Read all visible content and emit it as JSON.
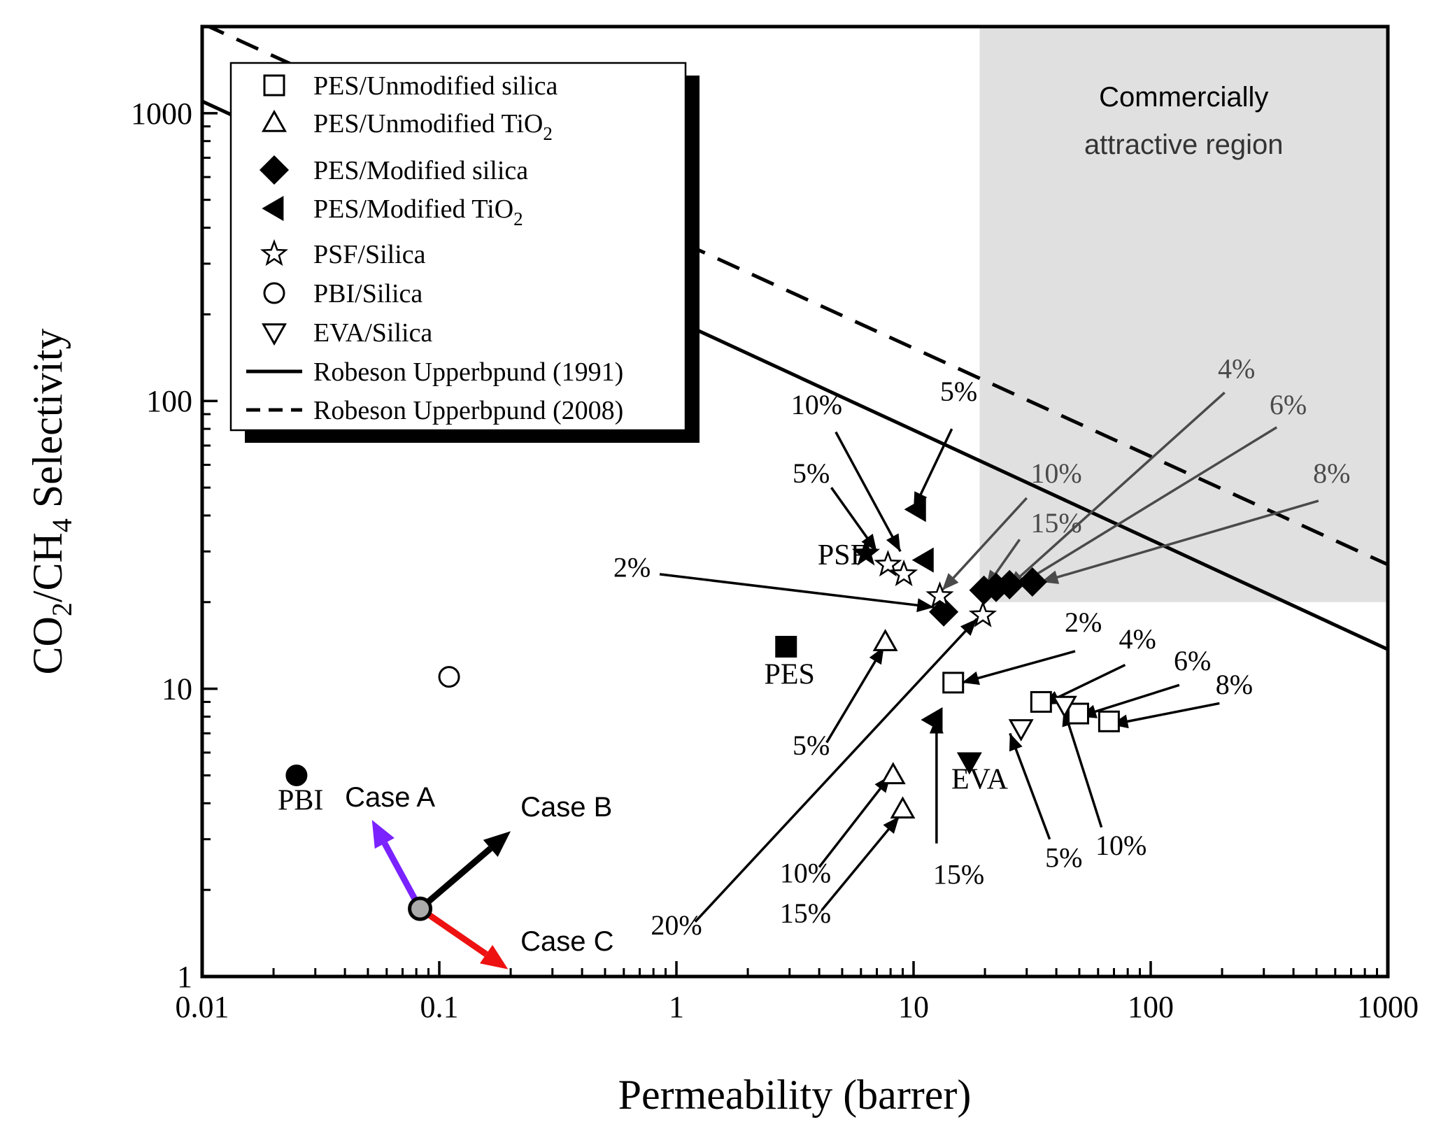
{
  "chart_data": {
    "type": "scatter",
    "xscale": "log",
    "yscale": "log",
    "xlim": [
      0.01,
      1000
    ],
    "ylim": [
      1,
      2000
    ],
    "xlabel": "Permeability (barrer)",
    "ylabel_parts": [
      "CO",
      "2",
      "/CH",
      "4",
      " Selectivity"
    ],
    "x_ticks": [
      {
        "value": 0.01,
        "label": "0.01"
      },
      {
        "value": 0.1,
        "label": "0.1"
      },
      {
        "value": 1,
        "label": "1"
      },
      {
        "value": 10,
        "label": "10"
      },
      {
        "value": 100,
        "label": "100"
      },
      {
        "value": 1000,
        "label": "1000"
      }
    ],
    "y_ticks": [
      {
        "value": 1,
        "label": "1"
      },
      {
        "value": 10,
        "label": "10"
      },
      {
        "value": 100,
        "label": "100"
      },
      {
        "value": 1000,
        "label": "1000"
      }
    ],
    "region": {
      "name": "commercial-region",
      "x_range": [
        19,
        1000
      ],
      "y_range": [
        20,
        2000
      ],
      "color": "#e0e0e0",
      "label_line1": "Commercially",
      "label_line2": "attractive region"
    },
    "bounds": [
      {
        "name": "robeson-1991-line",
        "style": "solid",
        "points": [
          [
            0.01,
            1100
          ],
          [
            1000,
            13.7
          ]
        ]
      },
      {
        "name": "robeson-2008-line",
        "style": "dashed",
        "points": [
          [
            0.01,
            2050
          ],
          [
            1000,
            27
          ]
        ]
      }
    ],
    "points": [
      {
        "series": "PES/Unmodified silica",
        "marker": "square-open",
        "x": 14.7,
        "y": 10.5
      },
      {
        "series": "PES/Unmodified silica",
        "marker": "square-open",
        "x": 34.5,
        "y": 9.0
      },
      {
        "series": "PES/Unmodified silica",
        "marker": "square-open",
        "x": 49.5,
        "y": 8.2
      },
      {
        "series": "PES/Unmodified silica",
        "marker": "square-open",
        "x": 66.7,
        "y": 7.7
      },
      {
        "series": "PES/Unmodified TiO2",
        "marker": "triangle-up-open",
        "x": 7.6,
        "y": 14.5
      },
      {
        "series": "PES/Unmodified TiO2",
        "marker": "triangle-up-open",
        "x": 8.2,
        "y": 5.0
      },
      {
        "series": "PES/Unmodified TiO2",
        "marker": "triangle-up-open",
        "x": 9.0,
        "y": 3.8
      },
      {
        "series": "PES/Modified silica",
        "marker": "diamond-filled",
        "x": 13.4,
        "y": 18.5
      },
      {
        "series": "PES/Modified silica",
        "marker": "diamond-filled",
        "x": 19.8,
        "y": 22.0
      },
      {
        "series": "PES/Modified silica",
        "marker": "diamond-filled",
        "x": 22.3,
        "y": 22.5
      },
      {
        "series": "PES/Modified silica",
        "marker": "diamond-filled",
        "x": 25.4,
        "y": 23.0
      },
      {
        "series": "PES/Modified silica",
        "marker": "diamond-filled",
        "x": 31.7,
        "y": 23.5
      },
      {
        "series": "PES/Modified TiO2",
        "marker": "triangle-left-filled",
        "x": 10.3,
        "y": 42.0
      },
      {
        "series": "PES/Modified TiO2",
        "marker": "triangle-left-filled",
        "x": 11.1,
        "y": 28.0
      },
      {
        "series": "PES/Modified TiO2",
        "marker": "triangle-left-filled",
        "x": 12.1,
        "y": 7.8
      },
      {
        "series": "PSF/Silica",
        "marker": "star-open",
        "x": 7.8,
        "y": 27.0
      },
      {
        "series": "PSF/Silica",
        "marker": "star-open",
        "x": 9.1,
        "y": 25.0
      },
      {
        "series": "PSF/Silica",
        "marker": "star-open",
        "x": 12.9,
        "y": 21.0
      },
      {
        "series": "PSF/Silica",
        "marker": "star-open",
        "x": 19.6,
        "y": 18.0
      },
      {
        "series": "PBI/Silica",
        "marker": "circle-open",
        "x": 0.11,
        "y": 11.0
      },
      {
        "series": "EVA/Silica",
        "marker": "triangle-down-open",
        "x": 28.4,
        "y": 7.3
      },
      {
        "series": "EVA/Silica",
        "marker": "triangle-down-open",
        "x": 43.3,
        "y": 8.8
      },
      {
        "series": "PES",
        "marker": "square-filled",
        "x": 2.9,
        "y": 14.0
      },
      {
        "series": "PSF",
        "marker": "star-filled",
        "x": 6.3,
        "y": 29.5
      },
      {
        "series": "PBI",
        "marker": "circle-filled",
        "x": 0.025,
        "y": 5.0
      },
      {
        "series": "EVA",
        "marker": "triangle-down-filled",
        "x": 17.2,
        "y": 5.6
      }
    ],
    "material_labels": [
      {
        "text": "PES",
        "x": 3.0,
        "y": 10.4
      },
      {
        "text": "PSF",
        "x": 5.0,
        "y": 27.0
      },
      {
        "text": "PBI",
        "x": 0.026,
        "y": 3.8
      },
      {
        "text": "EVA",
        "x": 19.0,
        "y": 4.5
      }
    ],
    "annotations": [
      {
        "text": "5%",
        "color": "#000000",
        "lx": 15.5,
        "ly": 100,
        "from": [
          14.5,
          80
        ],
        "to": [
          10.0,
          42
        ]
      },
      {
        "text": "10%",
        "color": "#000000",
        "lx": 3.9,
        "ly": 90,
        "from": [
          4.7,
          78
        ],
        "to": [
          8.8,
          30
        ]
      },
      {
        "text": "5%",
        "color": "#000000",
        "lx": 3.7,
        "ly": 52,
        "from": [
          4.5,
          50
        ],
        "to": [
          7.0,
          30
        ]
      },
      {
        "text": "2%",
        "color": "#000000",
        "lx": 0.65,
        "ly": 24.5,
        "from": [
          0.85,
          25
        ],
        "to": [
          12.2,
          19.2
        ]
      },
      {
        "text": "5%",
        "color": "#000000",
        "lx": 3.7,
        "ly": 5.9,
        "from": [
          4.3,
          6.5
        ],
        "to": [
          7.5,
          14
        ]
      },
      {
        "text": "20%",
        "color": "#000000",
        "lx": 1.0,
        "ly": 1.4,
        "from": [
          1.2,
          1.55
        ],
        "to": [
          18.5,
          17.5
        ]
      },
      {
        "text": "10%",
        "color": "#000000",
        "lx": 3.5,
        "ly": 2.12,
        "from": [
          4.0,
          2.4
        ],
        "to": [
          8.0,
          5.0
        ]
      },
      {
        "text": "15%",
        "color": "#000000",
        "lx": 3.5,
        "ly": 1.54,
        "from": [
          4.1,
          1.7
        ],
        "to": [
          8.7,
          3.6
        ]
      },
      {
        "text": "15%",
        "color": "#000000",
        "lx": 15.5,
        "ly": 2.1,
        "from": [
          12.5,
          2.9
        ],
        "to": [
          12.5,
          8.0
        ]
      },
      {
        "text": "5%",
        "color": "#000000",
        "lx": 43,
        "ly": 2.4,
        "from": [
          37.5,
          3.0
        ],
        "to": [
          25.5,
          7.0
        ]
      },
      {
        "text": "10%",
        "color": "#000000",
        "lx": 75,
        "ly": 2.65,
        "from": [
          62,
          3.3
        ],
        "to": [
          43,
          8.5
        ]
      },
      {
        "text": "2%",
        "color": "#000000",
        "lx": 52,
        "ly": 15.8,
        "from": [
          48,
          13.5
        ],
        "to": [
          16,
          10.5
        ]
      },
      {
        "text": "4%",
        "color": "#000000",
        "lx": 88,
        "ly": 13.8,
        "from": [
          78,
          12.1
        ],
        "to": [
          35,
          8.8
        ]
      },
      {
        "text": "6%",
        "color": "#000000",
        "lx": 150,
        "ly": 11.6,
        "from": [
          132,
          10.3
        ],
        "to": [
          50,
          8.0
        ]
      },
      {
        "text": "8%",
        "color": "#000000",
        "lx": 225,
        "ly": 9.6,
        "from": [
          195,
          8.9
        ],
        "to": [
          68,
          7.5
        ]
      },
      {
        "text": "10%",
        "color": "#4a4a4a",
        "lx": 40,
        "ly": 52,
        "from": [
          30,
          46
        ],
        "to": [
          13.2,
          22.0
        ]
      },
      {
        "text": "15%",
        "color": "#4a4a4a",
        "lx": 40,
        "ly": 35,
        "from": [
          28,
          33
        ],
        "to": [
          20.2,
          22.5
        ]
      },
      {
        "text": "4%",
        "color": "#4a4a4a",
        "lx": 230,
        "ly": 120,
        "from": [
          205,
          107
        ],
        "to": [
          25.0,
          22.5
        ]
      },
      {
        "text": "6%",
        "color": "#4a4a4a",
        "lx": 380,
        "ly": 90,
        "from": [
          340,
          81
        ],
        "to": [
          28.0,
          23.0
        ]
      },
      {
        "text": "8%",
        "color": "#4a4a4a",
        "lx": 580,
        "ly": 52,
        "from": [
          510,
          45
        ],
        "to": [
          34.5,
          23.5
        ]
      }
    ],
    "direction_arrows": [
      {
        "name": "case-a-arrow",
        "label": "Case A",
        "color": "#7a22ff",
        "from": [
          0.083,
          1.72
        ],
        "to": [
          0.052,
          3.5
        ],
        "lx": 0.04,
        "ly": 3.9
      },
      {
        "name": "case-b-arrow",
        "label": "Case B",
        "color": "#000000",
        "from": [
          0.083,
          1.72
        ],
        "to": [
          0.2,
          3.2
        ],
        "lx": 0.22,
        "ly": 3.6
      },
      {
        "name": "case-c-arrow",
        "label": "Case C",
        "color": "#ee1111",
        "from": [
          0.083,
          1.72
        ],
        "to": [
          0.195,
          1.06
        ],
        "lx": 0.22,
        "ly": 1.23
      }
    ],
    "case_origin": {
      "x": 0.083,
      "y": 1.72
    },
    "legend": {
      "placement": "top-left",
      "entries": [
        {
          "marker": "square-open",
          "text": "PES/Unmodified silica",
          "sub": ""
        },
        {
          "marker": "triangle-up-open",
          "text": "PES/Unmodified TiO",
          "sub": "2"
        },
        {
          "marker": "diamond-filled",
          "text": "PES/Modified silica",
          "sub": ""
        },
        {
          "marker": "triangle-left-filled",
          "text": "PES/Modified TiO",
          "sub": "2"
        },
        {
          "marker": "star-open",
          "text": "PSF/Silica",
          "sub": ""
        },
        {
          "marker": "circle-open",
          "text": "PBI/Silica",
          "sub": ""
        },
        {
          "marker": "triangle-down-open",
          "text": "EVA/Silica",
          "sub": ""
        },
        {
          "marker": "line-solid",
          "text": "Robeson Upperbpund (1991)",
          "sub": ""
        },
        {
          "marker": "line-dashed",
          "text": "Robeson Upperbpund (2008)",
          "sub": ""
        }
      ]
    }
  }
}
